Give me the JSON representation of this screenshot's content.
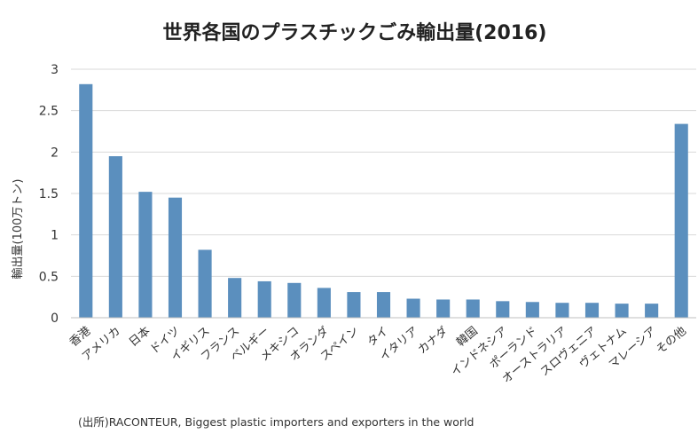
{
  "chart_data": {
    "type": "bar",
    "title": "世界各国のプラスチックごみ輸出量(2016)",
    "ylabel": "輸出量(100万トン)",
    "xlabel": "",
    "ylim": [
      0,
      3
    ],
    "yticks": [
      "0",
      "0.5",
      "1",
      "1.5",
      "2",
      "2.5",
      "3"
    ],
    "grid": true,
    "bar_color": "#5b8fbe",
    "categories": [
      "香港",
      "アメリカ",
      "日本",
      "ドイツ",
      "イギリス",
      "フランス",
      "ベルギー",
      "メキシコ",
      "オランダ",
      "スペイン",
      "タイ",
      "イタリア",
      "カナダ",
      "韓国",
      "インドネシア",
      "ポーランド",
      "オーストラリア",
      "スロヴェニア",
      "ヴェトナム",
      "マレーシア",
      "その他"
    ],
    "values": [
      2.82,
      1.95,
      1.52,
      1.45,
      0.82,
      0.48,
      0.44,
      0.42,
      0.36,
      0.31,
      0.31,
      0.23,
      0.22,
      0.22,
      0.2,
      0.19,
      0.18,
      0.18,
      0.17,
      0.17,
      2.34
    ]
  },
  "source": "(出所)RACONTEUR, Biggest plastic importers and exporters in the world"
}
